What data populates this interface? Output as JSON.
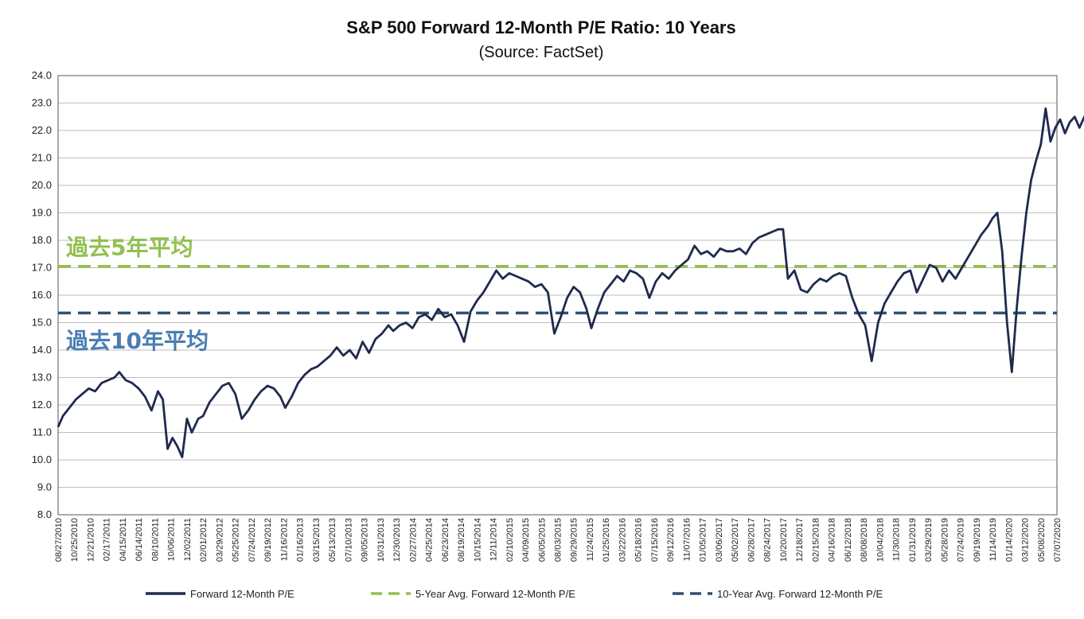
{
  "chart_data": {
    "type": "line",
    "title": "S&P 500 Forward 12-Month P/E Ratio: 10 Years",
    "subtitle": "(Source: FactSet)",
    "ylim": [
      8.0,
      24.0
    ],
    "yticks": [
      "8.0",
      "9.0",
      "10.0",
      "11.0",
      "12.0",
      "13.0",
      "14.0",
      "15.0",
      "16.0",
      "17.0",
      "18.0",
      "19.0",
      "20.0",
      "21.0",
      "22.0",
      "23.0",
      "24.0"
    ],
    "xticks": [
      "08/27/2010",
      "10/25/2010",
      "12/21/2010",
      "02/17/2011",
      "04/15/2011",
      "06/14/2011",
      "08/10/2011",
      "10/06/2011",
      "12/02/2011",
      "02/01/2012",
      "03/29/2012",
      "05/25/2012",
      "07/24/2012",
      "09/19/2012",
      "11/16/2012",
      "01/16/2013",
      "03/15/2013",
      "05/13/2013",
      "07/10/2013",
      "09/05/2013",
      "10/31/2013",
      "12/30/2013",
      "02/27/2014",
      "04/25/2014",
      "06/23/2014",
      "08/19/2014",
      "10/15/2014",
      "12/11/2014",
      "02/10/2015",
      "04/09/2015",
      "06/05/2015",
      "08/03/2015",
      "09/29/2015",
      "11/24/2015",
      "01/25/2016",
      "03/22/2016",
      "05/18/2016",
      "07/15/2016",
      "09/12/2016",
      "11/07/2016",
      "01/05/2017",
      "03/06/2017",
      "05/02/2017",
      "06/28/2017",
      "08/24/2017",
      "10/20/2017",
      "12/18/2017",
      "02/15/2018",
      "04/16/2018",
      "06/12/2018",
      "08/08/2018",
      "10/04/2018",
      "11/30/2018",
      "01/31/2019",
      "03/29/2019",
      "05/28/2019",
      "07/24/2019",
      "09/19/2019",
      "11/14/2019",
      "01/14/2020",
      "03/12/2020",
      "05/08/2020",
      "07/07/2020"
    ],
    "series": [
      {
        "name": "Forward 12-Month P/E",
        "color": "#1f2a4d",
        "style": "solid",
        "points": [
          [
            0,
            11.2
          ],
          [
            0.3,
            11.6
          ],
          [
            0.7,
            11.9
          ],
          [
            1.1,
            12.2
          ],
          [
            1.5,
            12.4
          ],
          [
            1.9,
            12.6
          ],
          [
            2.3,
            12.5
          ],
          [
            2.7,
            12.8
          ],
          [
            3.1,
            12.9
          ],
          [
            3.5,
            13.0
          ],
          [
            3.8,
            13.2
          ],
          [
            4.2,
            12.9
          ],
          [
            4.6,
            12.8
          ],
          [
            5.0,
            12.6
          ],
          [
            5.4,
            12.3
          ],
          [
            5.8,
            11.8
          ],
          [
            6.2,
            12.5
          ],
          [
            6.5,
            12.2
          ],
          [
            6.8,
            10.4
          ],
          [
            7.1,
            10.8
          ],
          [
            7.4,
            10.5
          ],
          [
            7.7,
            10.1
          ],
          [
            8.0,
            11.5
          ],
          [
            8.3,
            11.0
          ],
          [
            8.7,
            11.5
          ],
          [
            9.0,
            11.6
          ],
          [
            9.4,
            12.1
          ],
          [
            9.8,
            12.4
          ],
          [
            10.2,
            12.7
          ],
          [
            10.6,
            12.8
          ],
          [
            11.0,
            12.4
          ],
          [
            11.4,
            11.5
          ],
          [
            11.8,
            11.8
          ],
          [
            12.2,
            12.2
          ],
          [
            12.6,
            12.5
          ],
          [
            13.0,
            12.7
          ],
          [
            13.4,
            12.6
          ],
          [
            13.8,
            12.3
          ],
          [
            14.1,
            11.9
          ],
          [
            14.5,
            12.3
          ],
          [
            14.9,
            12.8
          ],
          [
            15.3,
            13.1
          ],
          [
            15.7,
            13.3
          ],
          [
            16.1,
            13.4
          ],
          [
            16.5,
            13.6
          ],
          [
            16.9,
            13.8
          ],
          [
            17.3,
            14.1
          ],
          [
            17.7,
            13.8
          ],
          [
            18.1,
            14.0
          ],
          [
            18.5,
            13.7
          ],
          [
            18.9,
            14.3
          ],
          [
            19.3,
            13.9
          ],
          [
            19.7,
            14.4
          ],
          [
            20.1,
            14.6
          ],
          [
            20.5,
            14.9
          ],
          [
            20.8,
            14.7
          ],
          [
            21.2,
            14.9
          ],
          [
            21.6,
            15.0
          ],
          [
            22.0,
            14.8
          ],
          [
            22.4,
            15.2
          ],
          [
            22.8,
            15.3
          ],
          [
            23.2,
            15.1
          ],
          [
            23.6,
            15.5
          ],
          [
            24.0,
            15.2
          ],
          [
            24.4,
            15.3
          ],
          [
            24.8,
            14.9
          ],
          [
            25.2,
            14.3
          ],
          [
            25.6,
            15.4
          ],
          [
            26.0,
            15.8
          ],
          [
            26.4,
            16.1
          ],
          [
            26.8,
            16.5
          ],
          [
            27.2,
            16.9
          ],
          [
            27.6,
            16.6
          ],
          [
            28.0,
            16.8
          ],
          [
            28.4,
            16.7
          ],
          [
            28.8,
            16.6
          ],
          [
            29.2,
            16.5
          ],
          [
            29.6,
            16.3
          ],
          [
            30.0,
            16.4
          ],
          [
            30.4,
            16.1
          ],
          [
            30.8,
            14.6
          ],
          [
            31.2,
            15.2
          ],
          [
            31.6,
            15.9
          ],
          [
            32.0,
            16.3
          ],
          [
            32.4,
            16.1
          ],
          [
            32.8,
            15.5
          ],
          [
            33.1,
            14.8
          ],
          [
            33.5,
            15.5
          ],
          [
            33.9,
            16.1
          ],
          [
            34.3,
            16.4
          ],
          [
            34.7,
            16.7
          ],
          [
            35.1,
            16.5
          ],
          [
            35.5,
            16.9
          ],
          [
            35.9,
            16.8
          ],
          [
            36.3,
            16.6
          ],
          [
            36.7,
            15.9
          ],
          [
            37.1,
            16.5
          ],
          [
            37.5,
            16.8
          ],
          [
            37.9,
            16.6
          ],
          [
            38.3,
            16.9
          ],
          [
            38.7,
            17.1
          ],
          [
            39.1,
            17.3
          ],
          [
            39.5,
            17.8
          ],
          [
            39.9,
            17.5
          ],
          [
            40.3,
            17.6
          ],
          [
            40.7,
            17.4
          ],
          [
            41.1,
            17.7
          ],
          [
            41.5,
            17.6
          ],
          [
            41.9,
            17.6
          ],
          [
            42.3,
            17.7
          ],
          [
            42.7,
            17.5
          ],
          [
            43.1,
            17.9
          ],
          [
            43.5,
            18.1
          ],
          [
            43.9,
            18.2
          ],
          [
            44.3,
            18.3
          ],
          [
            44.7,
            18.4
          ],
          [
            45.0,
            18.4
          ],
          [
            45.3,
            16.6
          ],
          [
            45.7,
            16.9
          ],
          [
            46.1,
            16.2
          ],
          [
            46.5,
            16.1
          ],
          [
            46.9,
            16.4
          ],
          [
            47.3,
            16.6
          ],
          [
            47.7,
            16.5
          ],
          [
            48.1,
            16.7
          ],
          [
            48.5,
            16.8
          ],
          [
            48.9,
            16.7
          ],
          [
            49.3,
            15.9
          ],
          [
            49.7,
            15.3
          ],
          [
            50.1,
            14.9
          ],
          [
            50.5,
            13.6
          ],
          [
            50.9,
            15.0
          ],
          [
            51.3,
            15.7
          ],
          [
            51.7,
            16.1
          ],
          [
            52.1,
            16.5
          ],
          [
            52.5,
            16.8
          ],
          [
            52.9,
            16.9
          ],
          [
            53.3,
            16.1
          ],
          [
            53.7,
            16.6
          ],
          [
            54.1,
            17.1
          ],
          [
            54.5,
            17.0
          ],
          [
            54.9,
            16.5
          ],
          [
            55.3,
            16.9
          ],
          [
            55.7,
            16.6
          ],
          [
            56.1,
            17.0
          ],
          [
            56.5,
            17.4
          ],
          [
            56.9,
            17.8
          ],
          [
            57.3,
            18.2
          ],
          [
            57.7,
            18.5
          ],
          [
            58.0,
            18.8
          ],
          [
            58.3,
            19.0
          ],
          [
            58.6,
            17.6
          ],
          [
            58.9,
            15.0
          ],
          [
            59.2,
            13.2
          ],
          [
            59.5,
            15.5
          ],
          [
            59.8,
            17.4
          ],
          [
            60.1,
            19.0
          ],
          [
            60.4,
            20.2
          ],
          [
            60.7,
            20.9
          ],
          [
            61.0,
            21.5
          ],
          [
            61.3,
            22.8
          ],
          [
            61.6,
            21.6
          ],
          [
            61.9,
            22.1
          ],
          [
            62.2,
            22.4
          ],
          [
            62.5,
            21.9
          ],
          [
            62.8,
            22.3
          ],
          [
            63.1,
            22.5
          ],
          [
            63.4,
            22.1
          ],
          [
            63.7,
            22.5
          ],
          [
            64.0,
            22.8
          ]
        ]
      },
      {
        "name": "5-Year Avg. Forward 12-Month P/E",
        "color": "#92c050",
        "style": "dashed",
        "value": 17.05
      },
      {
        "name": "10-Year Avg. Forward 12-Month P/E",
        "color": "#2f4f72",
        "style": "dashed",
        "value": 15.35
      }
    ],
    "annotations": [
      {
        "text": "過去5年平均",
        "color": "#92c050",
        "y": 17.75
      },
      {
        "text": "過去10年平均",
        "color": "#4a7db3",
        "y": 14.35
      }
    ],
    "grid": true,
    "legend": "bottom"
  }
}
